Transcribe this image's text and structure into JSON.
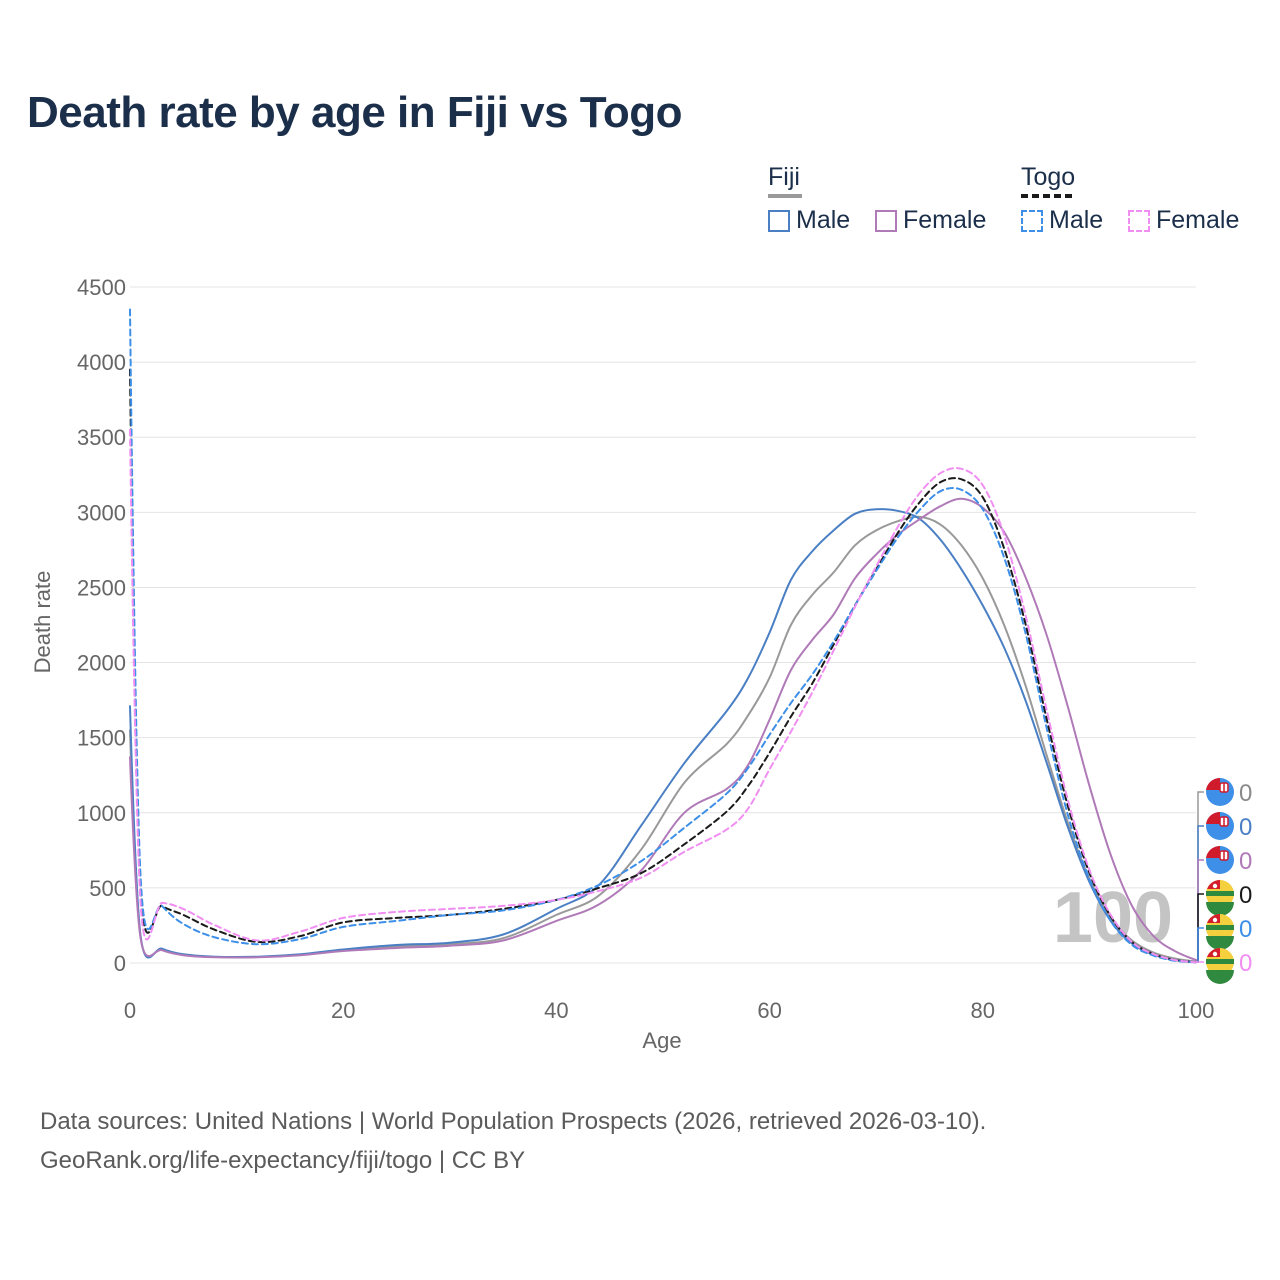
{
  "title": "Death rate by age in Fiji vs Togo",
  "legend": {
    "group1": "Fiji",
    "group2": "Togo",
    "male": "Male",
    "female": "Female"
  },
  "source": {
    "line1": "Data sources: United Nations | World Population Prospects (2026, retrieved 2026-03-10).",
    "line2": "GeoRank.org/life-expectancy/fiji/togo | CC BY"
  },
  "watermark": "100",
  "colors": {
    "fiji_total": "#999999",
    "fiji_male": "#4a7fc4",
    "fiji_female": "#b07ab8",
    "togo_total": "#1a1a1a",
    "togo_male": "#3d8fe8",
    "togo_female": "#f08ef2"
  },
  "chart_data": {
    "type": "line",
    "title": "Death rate by age in Fiji vs Togo",
    "xlabel": "Age",
    "ylabel": "Death rate",
    "xlim": [
      0,
      100
    ],
    "ylim": [
      0,
      4500
    ],
    "xticks": [
      0,
      20,
      40,
      60,
      80,
      100
    ],
    "yticks": [
      0,
      500,
      1000,
      1500,
      2000,
      2500,
      3000,
      3500,
      4000,
      4500
    ],
    "grid": true,
    "legend_position": "top-right",
    "end_labels": [
      {
        "series": "Fiji (total)",
        "value": "0"
      },
      {
        "series": "Fiji Male",
        "value": "0"
      },
      {
        "series": "Fiji Female",
        "value": "0"
      },
      {
        "series": "Togo (total)",
        "value": "0"
      },
      {
        "series": "Togo Male",
        "value": "0"
      },
      {
        "series": "Togo Female",
        "value": "0"
      }
    ],
    "series": [
      {
        "name": "Fiji (total)",
        "country": "Fiji",
        "dashed": false,
        "color": "#999999",
        "x": [
          0,
          1,
          3,
          5,
          8,
          12,
          16,
          20,
          25,
          30,
          35,
          40,
          44,
          48,
          52,
          56,
          58,
          60,
          62,
          64,
          66,
          68,
          70,
          72,
          74,
          76,
          78,
          80,
          82,
          84,
          86,
          88,
          90,
          92,
          94,
          96,
          98,
          100
        ],
        "y": [
          1550,
          170,
          90,
          55,
          40,
          40,
          55,
          85,
          110,
          125,
          165,
          320,
          450,
          760,
          1200,
          1460,
          1650,
          1900,
          2250,
          2450,
          2600,
          2780,
          2880,
          2940,
          2970,
          2920,
          2780,
          2560,
          2250,
          1850,
          1380,
          930,
          560,
          300,
          150,
          70,
          30,
          10
        ]
      },
      {
        "name": "Fiji Male",
        "country": "Fiji",
        "dashed": false,
        "color": "#4a7fc4",
        "x": [
          0,
          1,
          3,
          5,
          8,
          12,
          16,
          20,
          25,
          30,
          35,
          40,
          44,
          48,
          52,
          56,
          58,
          60,
          62,
          64,
          66,
          68,
          70,
          72,
          74,
          76,
          78,
          80,
          82,
          84,
          86,
          88,
          90,
          92,
          94,
          96,
          98,
          100
        ],
        "y": [
          1710,
          175,
          95,
          58,
          42,
          42,
          58,
          90,
          120,
          135,
          190,
          360,
          520,
          920,
          1330,
          1680,
          1900,
          2200,
          2550,
          2740,
          2880,
          2990,
          3020,
          3010,
          2960,
          2820,
          2620,
          2380,
          2100,
          1750,
          1330,
          900,
          540,
          280,
          130,
          55,
          20,
          5
        ]
      },
      {
        "name": "Fiji Female",
        "country": "Fiji",
        "dashed": false,
        "color": "#b07ab8",
        "x": [
          0,
          1,
          3,
          5,
          8,
          12,
          16,
          20,
          25,
          30,
          35,
          40,
          44,
          48,
          52,
          56,
          58,
          60,
          62,
          64,
          66,
          68,
          70,
          72,
          74,
          76,
          78,
          80,
          82,
          84,
          86,
          88,
          90,
          92,
          94,
          96,
          98,
          100
        ],
        "y": [
          1370,
          160,
          85,
          52,
          38,
          38,
          52,
          80,
          100,
          115,
          150,
          280,
          390,
          620,
          1000,
          1160,
          1320,
          1620,
          1950,
          2150,
          2320,
          2560,
          2720,
          2850,
          2950,
          3040,
          3090,
          3030,
          2870,
          2570,
          2180,
          1700,
          1180,
          720,
          380,
          180,
          80,
          20
        ]
      },
      {
        "name": "Togo (total)",
        "country": "Togo",
        "dashed": true,
        "color": "#1a1a1a",
        "x": [
          0,
          1,
          3,
          5,
          8,
          12,
          16,
          20,
          25,
          30,
          35,
          40,
          44,
          48,
          52,
          56,
          58,
          60,
          62,
          64,
          66,
          68,
          70,
          72,
          74,
          76,
          78,
          80,
          82,
          84,
          86,
          88,
          90,
          92,
          94,
          96,
          98,
          100
        ],
        "y": [
          3950,
          490,
          380,
          320,
          220,
          140,
          180,
          270,
          300,
          320,
          360,
          420,
          500,
          600,
          790,
          1010,
          1180,
          1400,
          1640,
          1860,
          2120,
          2380,
          2620,
          2860,
          3060,
          3200,
          3220,
          3100,
          2760,
          2260,
          1620,
          1040,
          600,
          310,
          140,
          60,
          20,
          5
        ]
      },
      {
        "name": "Togo Male",
        "country": "Togo",
        "dashed": true,
        "color": "#3d8fe8",
        "x": [
          0,
          1,
          3,
          5,
          8,
          12,
          16,
          20,
          25,
          30,
          35,
          40,
          44,
          48,
          52,
          56,
          58,
          60,
          62,
          64,
          66,
          68,
          70,
          72,
          74,
          76,
          78,
          80,
          82,
          84,
          86,
          88,
          90,
          92,
          94,
          96,
          98,
          100
        ],
        "y": [
          4350,
          560,
          380,
          260,
          170,
          125,
          160,
          240,
          280,
          320,
          350,
          420,
          520,
          680,
          900,
          1130,
          1300,
          1520,
          1730,
          1920,
          2140,
          2380,
          2610,
          2830,
          3010,
          3140,
          3150,
          3020,
          2700,
          2200,
          1560,
          980,
          560,
          280,
          120,
          50,
          15,
          5
        ]
      },
      {
        "name": "Togo Female",
        "country": "Togo",
        "dashed": true,
        "color": "#f08ef2",
        "x": [
          0,
          1,
          3,
          5,
          8,
          12,
          16,
          20,
          25,
          30,
          35,
          40,
          44,
          48,
          52,
          56,
          58,
          60,
          62,
          64,
          66,
          68,
          70,
          72,
          74,
          76,
          78,
          80,
          82,
          84,
          86,
          88,
          90,
          92,
          94,
          96,
          98,
          100
        ],
        "y": [
          3550,
          385,
          400,
          360,
          250,
          150,
          210,
          300,
          340,
          360,
          380,
          420,
          480,
          570,
          740,
          890,
          1030,
          1290,
          1540,
          1800,
          2080,
          2370,
          2640,
          2900,
          3120,
          3260,
          3290,
          3180,
          2850,
          2320,
          1680,
          1080,
          620,
          320,
          140,
          60,
          20,
          5
        ]
      }
    ]
  }
}
